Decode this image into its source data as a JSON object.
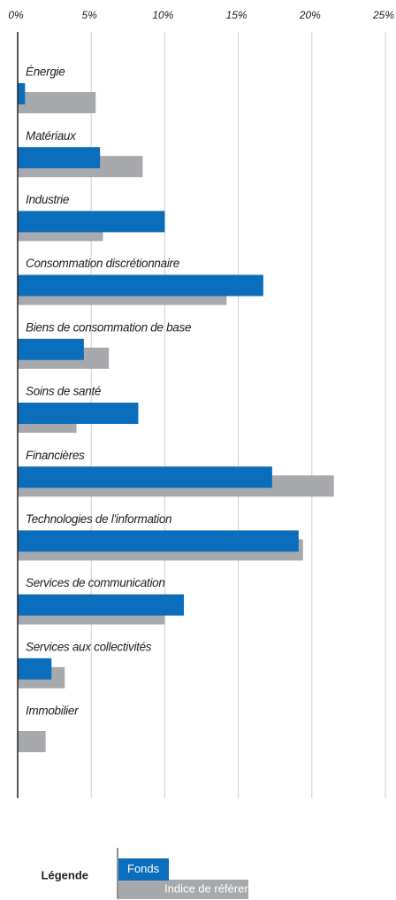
{
  "chart_data": {
    "type": "hbar",
    "categories": [
      "Énergie",
      "Matériaux",
      "Industrie",
      "Consommation discrétionnaire",
      "Biens de consommation de base",
      "Soins de santé",
      "Financières",
      "Technologies de l'information",
      "Services de communication",
      "Services aux collectivités",
      "Immobilier"
    ],
    "series": [
      {
        "name": "Fonds",
        "color": "#0a6ebd",
        "values": [
          0.5,
          5.6,
          10.0,
          16.7,
          4.5,
          8.2,
          17.3,
          19.1,
          11.3,
          2.3,
          0
        ]
      },
      {
        "name": "Indice de référence",
        "color": "#a7a9ac",
        "values": [
          5.3,
          8.5,
          5.8,
          14.2,
          6.2,
          4.0,
          21.5,
          19.4,
          10.0,
          3.2,
          1.9
        ]
      }
    ],
    "xlim": [
      0,
      25
    ],
    "xticks": [
      {
        "value": 0,
        "label": "0%"
      },
      {
        "value": 5,
        "label": "5%"
      },
      {
        "value": 10,
        "label": "10%"
      },
      {
        "value": 15,
        "label": "15%"
      },
      {
        "value": 20,
        "label": "20%"
      },
      {
        "value": 25,
        "label": "25%"
      }
    ],
    "grid": true,
    "legend_title": "Légende"
  }
}
